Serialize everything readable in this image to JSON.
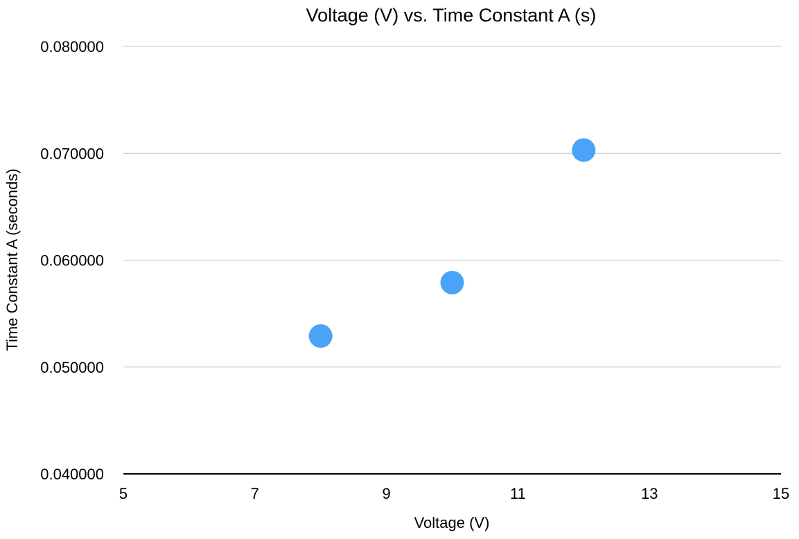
{
  "chart_data": {
    "type": "scatter",
    "title": "Voltage (V) vs. Time Constant A (s)",
    "xlabel": "Voltage (V)",
    "ylabel": "Time Constant A (seconds)",
    "xlim": [
      5,
      15
    ],
    "ylim": [
      0.04,
      0.08
    ],
    "x_ticks": [
      "5",
      "7",
      "9",
      "11",
      "13",
      "15"
    ],
    "y_ticks": [
      "0.040000",
      "0.050000",
      "0.060000",
      "0.070000",
      "0.080000"
    ],
    "grid": "horizontal",
    "legend": "none",
    "series": [
      {
        "color": "#4AA3F7",
        "points": [
          {
            "x": 8,
            "y": 0.0529
          },
          {
            "x": 10,
            "y": 0.0579
          },
          {
            "x": 12,
            "y": 0.0703
          }
        ]
      }
    ]
  }
}
